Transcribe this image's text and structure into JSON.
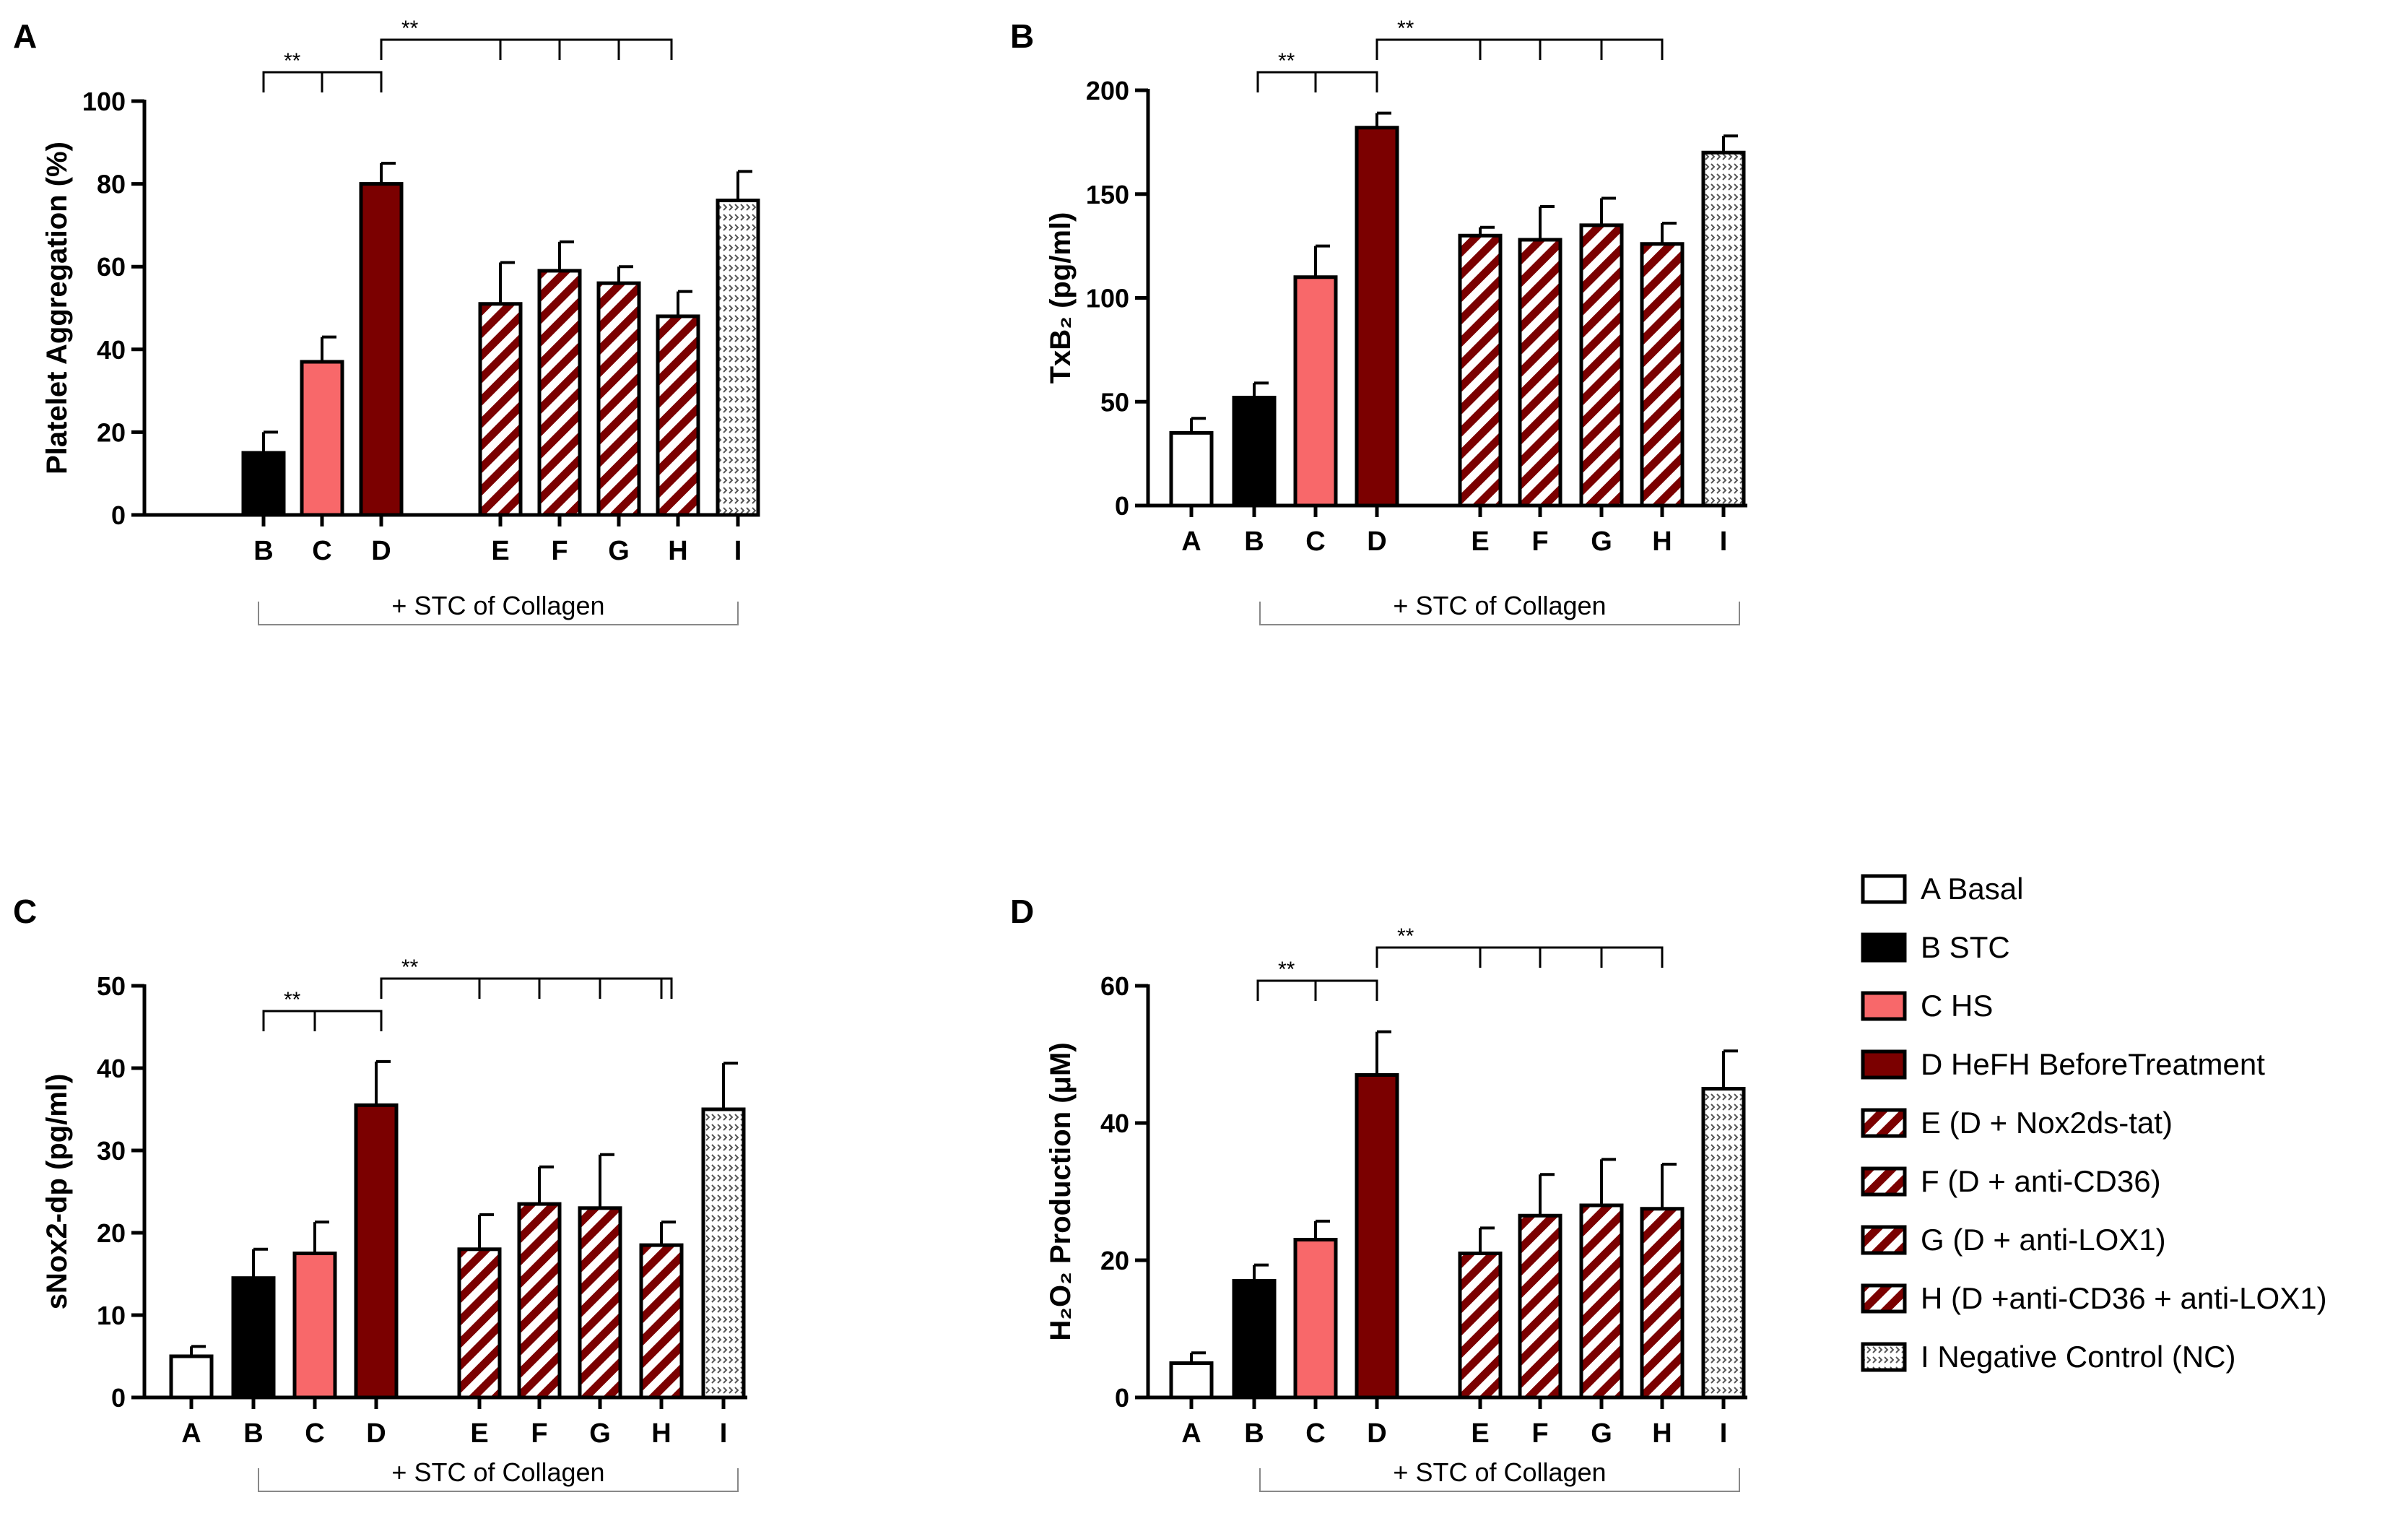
{
  "series_styles": {
    "A": {
      "fill": "#ffffff",
      "pattern": "none"
    },
    "B": {
      "fill": "#000000",
      "pattern": "none"
    },
    "C": {
      "fill": "#f8686a",
      "pattern": "none"
    },
    "D": {
      "fill": "#7b0000",
      "pattern": "none"
    },
    "E": {
      "fill": "#7b0000",
      "pattern": "stripes"
    },
    "F": {
      "fill": "#7b0000",
      "pattern": "stripes"
    },
    "G": {
      "fill": "#7b0000",
      "pattern": "stripes"
    },
    "H": {
      "fill": "#7b0000",
      "pattern": "stripes"
    },
    "I": {
      "fill": "#ffffff",
      "pattern": "dots"
    }
  },
  "legend": [
    {
      "key": "A",
      "label": "A Basal"
    },
    {
      "key": "B",
      "label": "B STC"
    },
    {
      "key": "C",
      "label": "C HS"
    },
    {
      "key": "D",
      "label": "D HeFH BeforeTreatment"
    },
    {
      "key": "E",
      "label": "E (D + Nox2ds-tat)"
    },
    {
      "key": "F",
      "label": "F (D + anti-CD36)"
    },
    {
      "key": "G",
      "label": "G (D + anti-LOX1)"
    },
    {
      "key": "H",
      "label": "H (D +anti-CD36 + anti-LOX1)"
    },
    {
      "key": "I",
      "label": "I Negative Control (NC)"
    }
  ],
  "significance_label": "**",
  "collagen_label": "+ STC of Collagen",
  "chart_data": [
    {
      "panel": "A",
      "type": "bar",
      "categories": [
        "B",
        "C",
        "D",
        "E",
        "F",
        "G",
        "H",
        "I"
      ],
      "values": [
        15,
        37,
        80,
        51,
        59,
        56,
        48,
        76
      ],
      "errors": [
        5,
        6,
        5,
        10,
        7,
        4,
        6,
        7
      ],
      "ylabel": "Platelet Aggregation (%)",
      "ylim": [
        0,
        100
      ],
      "yticks": [
        0,
        20,
        40,
        60,
        80,
        100
      ]
    },
    {
      "panel": "B",
      "type": "bar",
      "categories": [
        "A",
        "B",
        "C",
        "D",
        "E",
        "F",
        "G",
        "H",
        "I"
      ],
      "values": [
        35,
        52,
        110,
        182,
        130,
        128,
        135,
        126,
        170
      ],
      "errors": [
        7,
        7,
        15,
        7,
        4,
        16,
        13,
        10,
        8
      ],
      "ylabel": "TxB₂ (pg/ml)",
      "ylim": [
        0,
        200
      ],
      "yticks": [
        0,
        50,
        100,
        150,
        200
      ]
    },
    {
      "panel": "C",
      "type": "bar",
      "categories": [
        "A",
        "B",
        "C",
        "D",
        "E",
        "F",
        "G",
        "H",
        "I"
      ],
      "values": [
        5,
        14.5,
        17.5,
        35.5,
        18,
        23.5,
        23,
        18.5,
        35
      ],
      "errors": [
        1.2,
        3.5,
        3.8,
        5.3,
        4.2,
        4.5,
        6.5,
        2.8,
        5.6
      ],
      "ylabel": "sNox2-dp (pg/ml)",
      "ylim": [
        0,
        50
      ],
      "yticks": [
        0,
        10,
        20,
        30,
        40,
        50
      ]
    },
    {
      "panel": "D",
      "type": "bar",
      "categories": [
        "A",
        "B",
        "C",
        "D",
        "E",
        "F",
        "G",
        "H",
        "I"
      ],
      "values": [
        5,
        17,
        23,
        47,
        21,
        26.5,
        28,
        27.5,
        45
      ],
      "errors": [
        1.5,
        2.3,
        2.7,
        6.3,
        3.7,
        6,
        6.7,
        6.5,
        5.5
      ],
      "ylabel": "H₂O₂ Production (μM)",
      "ylim": [
        0,
        60
      ],
      "yticks": [
        0,
        20,
        40,
        60
      ]
    }
  ]
}
